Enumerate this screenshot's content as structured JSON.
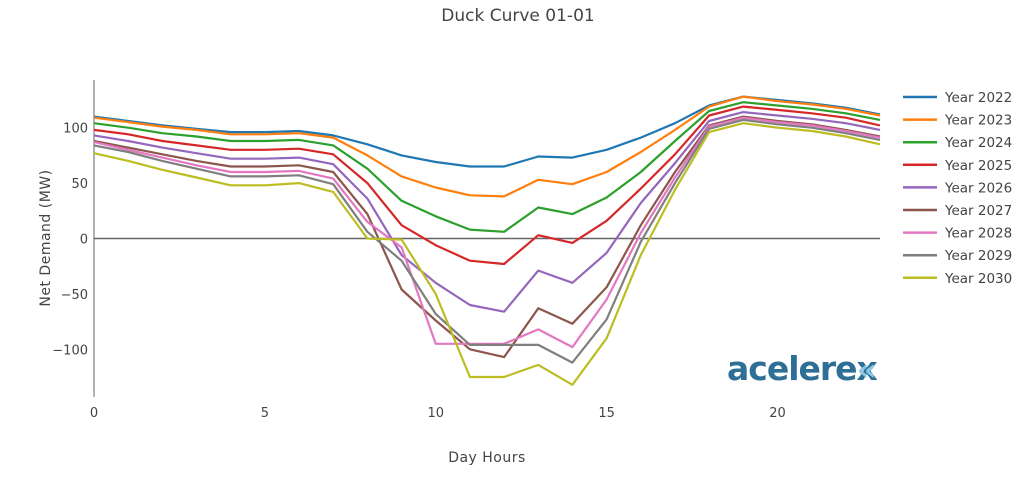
{
  "chart_data": {
    "type": "line",
    "title": "Duck Curve 01-01",
    "xlabel": "Day Hours",
    "ylabel": "Net Demand (MW)",
    "xlim": [
      0,
      23
    ],
    "ylim": [
      -143,
      143
    ],
    "x_ticks": [
      0,
      5,
      10,
      15,
      20
    ],
    "y_ticks": [
      -100,
      -50,
      0,
      50,
      100
    ],
    "x_tick_labels": [
      "0",
      "5",
      "10",
      "15",
      "20"
    ],
    "y_tick_labels": [
      "−100",
      "−50",
      "0",
      "50",
      "100"
    ],
    "x": [
      0,
      1,
      2,
      3,
      4,
      5,
      6,
      7,
      8,
      9,
      10,
      11,
      12,
      13,
      14,
      15,
      16,
      17,
      18,
      19,
      20,
      21,
      22,
      23
    ],
    "legend_position": "right",
    "series": [
      {
        "name": "Year 2022",
        "color": "#1f77b4",
        "values": [
          110,
          106,
          102,
          99,
          96,
          96,
          97,
          93,
          85,
          75,
          69,
          65,
          65,
          74,
          73,
          80,
          91,
          104,
          120,
          128,
          125,
          122,
          118,
          112
        ]
      },
      {
        "name": "Year 2023",
        "color": "#ff7f0e",
        "values": [
          109,
          105,
          101,
          98,
          94,
          94,
          95,
          91,
          75,
          56,
          46,
          39,
          38,
          53,
          49,
          60,
          78,
          98,
          119,
          128,
          124,
          121,
          117,
          111
        ]
      },
      {
        "name": "Year 2024",
        "color": "#2ca02c",
        "values": [
          104,
          100,
          95,
          92,
          88,
          88,
          89,
          84,
          63,
          34,
          20,
          8,
          6,
          28,
          22,
          37,
          60,
          88,
          115,
          123,
          120,
          117,
          113,
          107
        ]
      },
      {
        "name": "Year 2025",
        "color": "#d62728",
        "values": [
          98,
          94,
          88,
          84,
          80,
          80,
          81,
          76,
          50,
          12,
          -6,
          -20,
          -23,
          3,
          -4,
          16,
          45,
          76,
          111,
          119,
          116,
          113,
          109,
          102
        ]
      },
      {
        "name": "Year 2026",
        "color": "#9467bd",
        "values": [
          93,
          88,
          82,
          77,
          72,
          72,
          73,
          67,
          36,
          -15,
          -40,
          -60,
          -66,
          -29,
          -40,
          -13,
          32,
          68,
          106,
          114,
          111,
          108,
          104,
          98
        ]
      },
      {
        "name": "Year 2027",
        "color": "#8c564b",
        "values": [
          88,
          82,
          76,
          70,
          65,
          65,
          66,
          60,
          22,
          -46,
          -74,
          -100,
          -107,
          -63,
          -77,
          -44,
          12,
          60,
          102,
          110,
          106,
          103,
          98,
          92
        ]
      },
      {
        "name": "Year 2028",
        "color": "#e377c2",
        "values": [
          87,
          80,
          73,
          66,
          60,
          60,
          61,
          54,
          15,
          -8,
          -95,
          -95,
          -95,
          -82,
          -98,
          -55,
          5,
          55,
          101,
          109,
          105,
          102,
          97,
          91
        ]
      },
      {
        "name": "Year 2029",
        "color": "#7f7f7f",
        "values": [
          84,
          78,
          70,
          63,
          56,
          56,
          57,
          49,
          6,
          -20,
          -68,
          -96,
          -96,
          -96,
          -112,
          -73,
          -3,
          50,
          99,
          107,
          103,
          100,
          95,
          89
        ]
      },
      {
        "name": "Year 2030",
        "color": "#bcbd22",
        "values": [
          77,
          70,
          62,
          55,
          48,
          48,
          50,
          42,
          0,
          -1,
          -50,
          -125,
          -125,
          -114,
          -132,
          -90,
          -15,
          44,
          96,
          104,
          100,
          97,
          92,
          85
        ]
      }
    ]
  },
  "watermark": {
    "text": "acelerex",
    "mark": "«"
  }
}
